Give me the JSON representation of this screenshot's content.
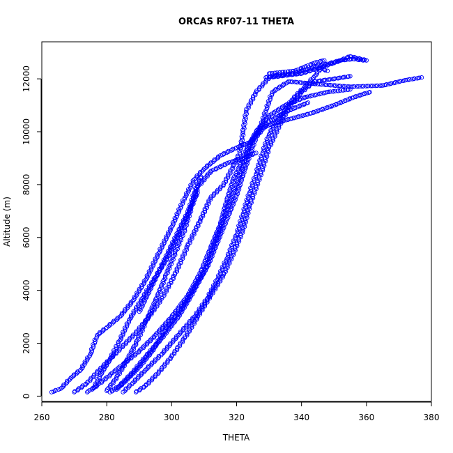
{
  "chart_data": {
    "type": "scatter",
    "title": "ORCAS RF07-11 THETA",
    "xlabel": "THETA",
    "ylabel": "Altitude (m)",
    "xlim": [
      260,
      380
    ],
    "ylim": [
      -200,
      13400
    ],
    "xticks": [
      260,
      280,
      300,
      320,
      340,
      360,
      380
    ],
    "yticks": [
      0,
      2000,
      4000,
      6000,
      8000,
      10000,
      12000
    ],
    "grid": false,
    "legend": "none",
    "marker": "open-circle",
    "color": "#0000ff",
    "series": [
      {
        "points": [
          [
            263,
            150
          ],
          [
            266,
            300
          ],
          [
            269,
            700
          ],
          [
            272,
            1000
          ],
          [
            275,
            1600
          ],
          [
            277,
            2300
          ],
          [
            280,
            2600
          ],
          [
            284,
            3000
          ],
          [
            288,
            3600
          ],
          [
            292,
            4400
          ],
          [
            296,
            5400
          ],
          [
            300,
            6400
          ],
          [
            304,
            7500
          ],
          [
            307,
            8200
          ],
          [
            310,
            8600
          ],
          [
            315,
            9100
          ],
          [
            320,
            9400
          ],
          [
            324,
            9600
          ],
          [
            327,
            10000
          ],
          [
            329,
            10800
          ],
          [
            331,
            11500
          ],
          [
            336,
            11900
          ],
          [
            345,
            11800
          ],
          [
            355,
            11700
          ],
          [
            365,
            11750
          ],
          [
            372,
            11950
          ],
          [
            377,
            12050
          ]
        ]
      },
      {
        "points": [
          [
            270,
            150
          ],
          [
            274,
            500
          ],
          [
            277,
            900
          ],
          [
            281,
            1400
          ],
          [
            285,
            1900
          ],
          [
            289,
            2400
          ],
          [
            293,
            3000
          ],
          [
            297,
            3700
          ],
          [
            301,
            4600
          ],
          [
            305,
            5700
          ],
          [
            309,
            6700
          ],
          [
            312,
            7500
          ],
          [
            316,
            8000
          ],
          [
            319,
            8700
          ],
          [
            321,
            9200
          ],
          [
            322,
            10000
          ],
          [
            323,
            10800
          ],
          [
            326,
            11500
          ],
          [
            330,
            12050
          ],
          [
            340,
            12200
          ],
          [
            350,
            12600
          ],
          [
            355,
            12850
          ],
          [
            360,
            12700
          ]
        ]
      },
      {
        "points": [
          [
            274,
            150
          ],
          [
            277,
            400
          ],
          [
            281,
            800
          ],
          [
            285,
            1200
          ],
          [
            290,
            1700
          ],
          [
            295,
            2300
          ],
          [
            300,
            3000
          ],
          [
            305,
            3800
          ],
          [
            309,
            4700
          ],
          [
            312,
            5600
          ],
          [
            315,
            6500
          ],
          [
            317,
            7400
          ],
          [
            319,
            8200
          ],
          [
            321,
            8700
          ],
          [
            323,
            9300
          ],
          [
            326,
            10000
          ],
          [
            330,
            10600
          ],
          [
            335,
            11000
          ],
          [
            341,
            11300
          ],
          [
            348,
            11500
          ],
          [
            355,
            11600
          ]
        ]
      },
      {
        "points": [
          [
            281,
            150
          ],
          [
            284,
            400
          ],
          [
            288,
            900
          ],
          [
            292,
            1500
          ],
          [
            297,
            2200
          ],
          [
            302,
            3000
          ],
          [
            306,
            3800
          ],
          [
            310,
            4700
          ],
          [
            313,
            5700
          ],
          [
            316,
            6700
          ],
          [
            319,
            7700
          ],
          [
            322,
            8700
          ],
          [
            324,
            9500
          ],
          [
            327,
            10100
          ],
          [
            331,
            10300
          ],
          [
            337,
            10500
          ],
          [
            343,
            10700
          ],
          [
            350,
            11000
          ],
          [
            356,
            11300
          ],
          [
            361,
            11500
          ]
        ]
      },
      {
        "points": [
          [
            285,
            150
          ],
          [
            288,
            500
          ],
          [
            292,
            1000
          ],
          [
            297,
            1600
          ],
          [
            302,
            2300
          ],
          [
            307,
            3000
          ],
          [
            311,
            3700
          ],
          [
            314,
            4400
          ],
          [
            317,
            5200
          ],
          [
            320,
            6100
          ],
          [
            322,
            6900
          ],
          [
            324,
            7700
          ],
          [
            326,
            8400
          ],
          [
            328,
            9200
          ],
          [
            330,
            9900
          ],
          [
            333,
            10500
          ],
          [
            337,
            11200
          ],
          [
            341,
            11700
          ],
          [
            344,
            12100
          ],
          [
            346,
            12400
          ],
          [
            348,
            12300
          ]
        ]
      },
      {
        "points": [
          [
            289,
            150
          ],
          [
            292,
            400
          ],
          [
            296,
            900
          ],
          [
            300,
            1500
          ],
          [
            304,
            2200
          ],
          [
            308,
            3000
          ],
          [
            312,
            3800
          ],
          [
            316,
            4600
          ],
          [
            319,
            5400
          ],
          [
            322,
            6300
          ],
          [
            324,
            7200
          ],
          [
            326,
            7900
          ],
          [
            328,
            8600
          ],
          [
            330,
            9400
          ],
          [
            333,
            10200
          ],
          [
            336,
            10900
          ],
          [
            340,
            11500
          ],
          [
            344,
            11900
          ],
          [
            350,
            12000
          ],
          [
            355,
            12100
          ]
        ]
      },
      {
        "points": [
          [
            280,
            200
          ],
          [
            283,
            700
          ],
          [
            286,
            1300
          ],
          [
            289,
            2000
          ],
          [
            292,
            2800
          ],
          [
            295,
            3600
          ],
          [
            298,
            4500
          ],
          [
            301,
            5400
          ],
          [
            304,
            6300
          ],
          [
            306,
            7100
          ],
          [
            308,
            7900
          ],
          [
            312,
            8500
          ],
          [
            317,
            8800
          ],
          [
            322,
            9000
          ],
          [
            326,
            9200
          ]
        ]
      },
      {
        "points": [
          [
            283,
            250
          ],
          [
            286,
            600
          ],
          [
            290,
            1100
          ],
          [
            294,
            1700
          ],
          [
            298,
            2500
          ],
          [
            303,
            3300
          ],
          [
            307,
            4100
          ],
          [
            311,
            4900
          ],
          [
            314,
            5800
          ],
          [
            317,
            6700
          ],
          [
            320,
            7600
          ],
          [
            322,
            8400
          ],
          [
            324,
            9100
          ],
          [
            326,
            9800
          ],
          [
            330,
            10400
          ],
          [
            336,
            10800
          ],
          [
            342,
            11100
          ]
        ]
      },
      {
        "points": [
          [
            276,
            300
          ],
          [
            278,
            800
          ],
          [
            281,
            1400
          ],
          [
            284,
            2100
          ],
          [
            287,
            2900
          ],
          [
            291,
            3700
          ],
          [
            295,
            4500
          ],
          [
            299,
            5300
          ],
          [
            302,
            6100
          ],
          [
            305,
            6900
          ],
          [
            307,
            7700
          ],
          [
            309,
            8300
          ]
        ]
      },
      {
        "points": [
          [
            329,
            12050
          ],
          [
            333,
            12150
          ],
          [
            337,
            12200
          ],
          [
            340,
            12300
          ],
          [
            343,
            12400
          ],
          [
            346,
            12500
          ],
          [
            349,
            12600
          ],
          [
            352,
            12700
          ],
          [
            356,
            12750
          ],
          [
            359,
            12700
          ]
        ]
      },
      {
        "points": [
          [
            330,
            12200
          ],
          [
            334,
            12250
          ],
          [
            338,
            12300
          ],
          [
            341,
            12450
          ],
          [
            344,
            12600
          ],
          [
            347,
            12700
          ]
        ]
      },
      {
        "points": [
          [
            290,
            3200
          ],
          [
            292,
            3700
          ],
          [
            294,
            4200
          ],
          [
            296,
            4700
          ],
          [
            298,
            5200
          ],
          [
            300,
            5700
          ],
          [
            302,
            6200
          ],
          [
            304,
            6700
          ],
          [
            306,
            7200
          ],
          [
            308,
            7700
          ]
        ]
      }
    ]
  }
}
